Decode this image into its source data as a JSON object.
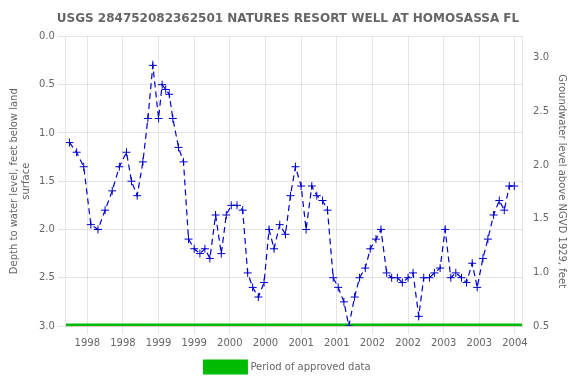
{
  "chart_data": {
    "type": "line",
    "title": "USGS 284752082362501 NATURES RESORT WELL AT HOMOSASSA FL",
    "ylabel": "Depth to water level, feet below land\nsurface",
    "y2label": "Groundwater level above NGVD 1929, feet",
    "series": [
      {
        "color": "#0000cc",
        "marker": "plus",
        "line_style": "dashed",
        "x": [
          1997.75,
          1997.85,
          1997.95,
          1998.05,
          1998.15,
          1998.25,
          1998.35,
          1998.45,
          1998.55,
          1998.62,
          1998.7,
          1998.78,
          1998.85,
          1998.92,
          1999.0,
          1999.05,
          1999.1,
          1999.15,
          1999.2,
          1999.28,
          1999.35,
          1999.42,
          1999.5,
          1999.58,
          1999.65,
          1999.72,
          1999.8,
          1999.88,
          1999.95,
          2000.02,
          2000.1,
          2000.18,
          2000.25,
          2000.32,
          2000.4,
          2000.48,
          2000.55,
          2000.62,
          2000.7,
          2000.78,
          2000.85,
          2000.92,
          2001.0,
          2001.07,
          2001.15,
          2001.22,
          2001.3,
          2001.37,
          2001.45,
          2001.52,
          2001.6,
          2001.67,
          2001.75,
          2001.82,
          2001.9,
          2001.97,
          2002.05,
          2002.12,
          2002.2,
          2002.27,
          2002.35,
          2002.42,
          2002.5,
          2002.57,
          2002.65,
          2002.72,
          2002.8,
          2002.87,
          2002.95,
          2003.02,
          2003.1,
          2003.17,
          2003.25,
          2003.32,
          2003.4,
          2003.47,
          2003.55,
          2003.62,
          2003.7,
          2003.78,
          2003.85,
          2003.92,
          2003.99
        ],
        "values": [
          1.1,
          1.2,
          1.35,
          1.95,
          2.0,
          1.8,
          1.6,
          1.35,
          1.2,
          1.5,
          1.65,
          1.3,
          0.85,
          0.3,
          0.85,
          0.5,
          0.55,
          0.6,
          0.85,
          1.15,
          1.3,
          2.1,
          2.2,
          2.25,
          2.2,
          2.3,
          1.85,
          2.25,
          1.85,
          1.75,
          1.75,
          1.8,
          2.45,
          2.6,
          2.7,
          2.55,
          2.0,
          2.2,
          1.95,
          2.05,
          1.65,
          1.35,
          1.55,
          2.0,
          1.55,
          1.65,
          1.7,
          1.8,
          2.5,
          2.6,
          2.75,
          3.0,
          2.7,
          2.5,
          2.4,
          2.2,
          2.1,
          2.0,
          2.45,
          2.5,
          2.5,
          2.55,
          2.5,
          2.45,
          2.9,
          2.5,
          2.5,
          2.45,
          2.4,
          2.0,
          2.5,
          2.45,
          2.5,
          2.55,
          2.35,
          2.6,
          2.3,
          2.1,
          1.85,
          1.7,
          1.8,
          1.55,
          1.55
        ]
      },
      {
        "name": "Period of approved data",
        "color": "#00bb00",
        "marker": "none",
        "line_style": "solid",
        "x": [
          1997.7,
          2004.1
        ],
        "values": [
          3.0,
          3.0
        ]
      }
    ],
    "xlim": [
      1997.7,
      2004.1
    ],
    "xticks": [
      1998,
      {
        "value": 1998.5,
        "label": "1998"
      },
      1999,
      {
        "value": 1999.5,
        "label": "1999"
      },
      2000,
      {
        "value": 2000.5,
        "label": "2000"
      },
      2001,
      {
        "value": 2001.5,
        "label": "2001"
      },
      2002,
      {
        "value": 2002.5,
        "label": "2002"
      },
      2003,
      {
        "value": 2003.5,
        "label": "2003"
      },
      2004
    ],
    "ylim": [
      3.0,
      0.0
    ],
    "yticks": [
      {
        "value": 0.0,
        "label": "0.0"
      },
      0.5,
      {
        "value": 1.0,
        "label": "1.0"
      },
      1.5,
      {
        "value": 2.0,
        "label": "2.0"
      },
      2.5,
      {
        "value": 3.0,
        "label": "3.0"
      }
    ],
    "y2lim": [
      0.5,
      3.2
    ],
    "y2ticks": [
      0.5,
      {
        "value": 1.0,
        "label": "1.0"
      },
      1.5,
      {
        "value": 2.0,
        "label": "2.0"
      },
      2.5,
      {
        "value": 3.0,
        "label": "3.0"
      }
    ],
    "grid": true,
    "legend": "bottom"
  }
}
